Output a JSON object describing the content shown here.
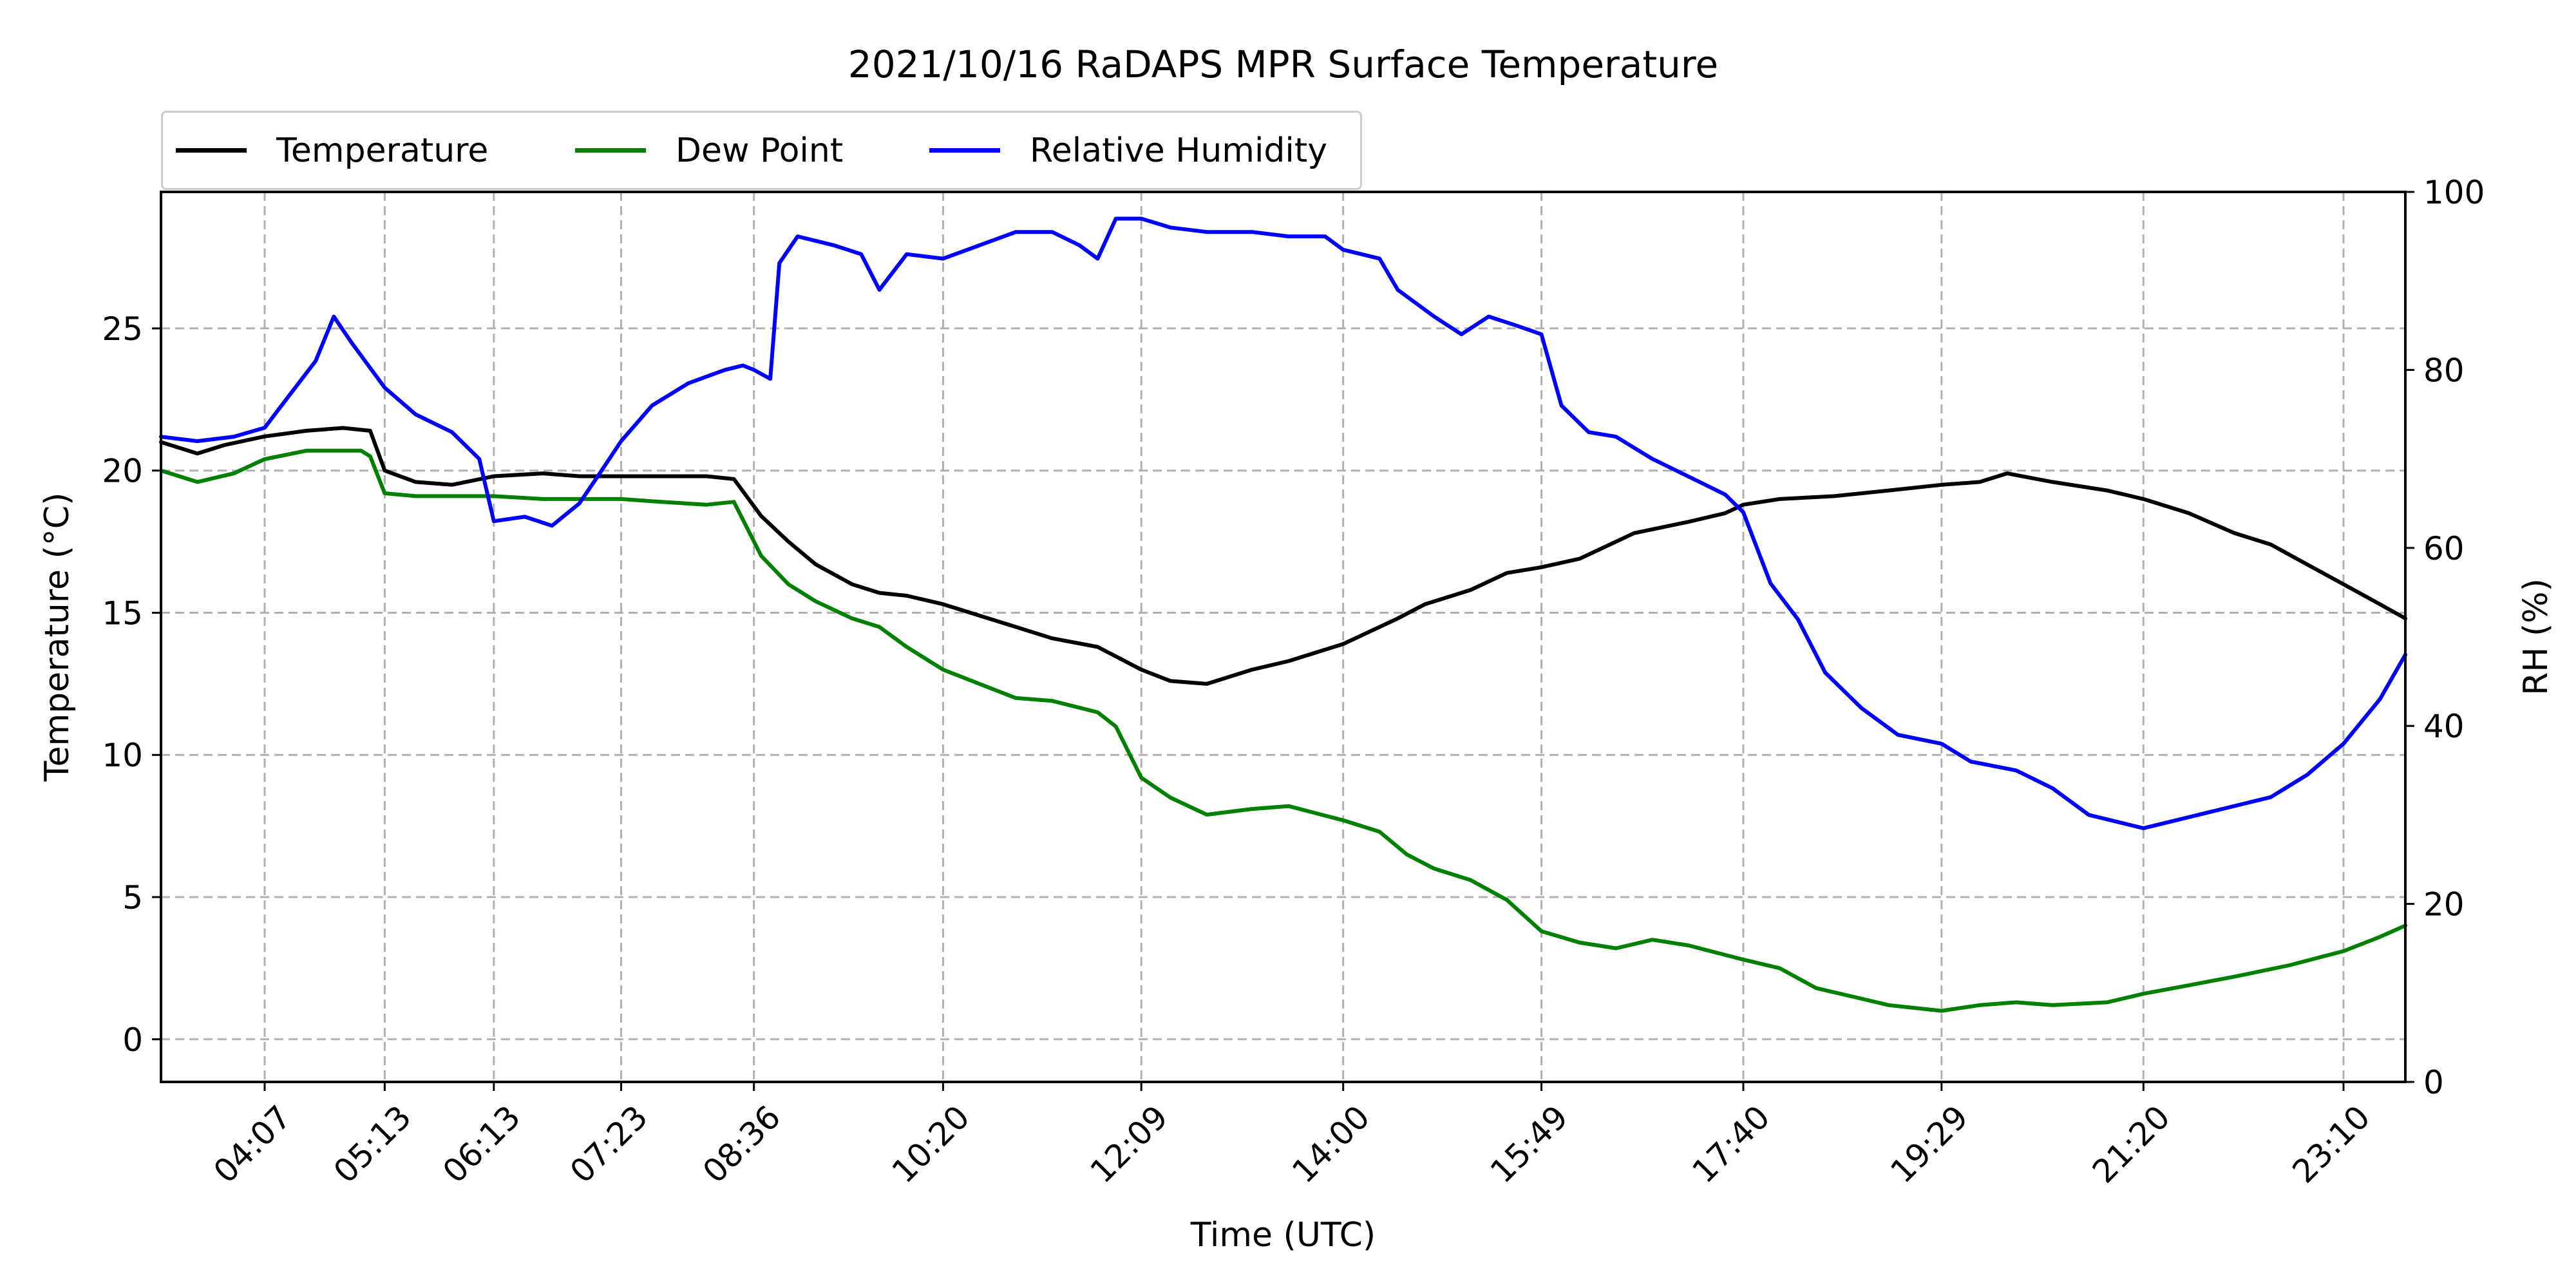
{
  "chart_data": {
    "type": "line",
    "title": "2021/10/16 RaDAPS MPR Surface Temperature",
    "xlabel": "Time (UTC)",
    "ylabel": "Temperature ($^\\circ$C)",
    "ylabel_display": "Temperature (°C)",
    "y2label": "RH (%)",
    "ylim": [
      -1.5,
      29.8
    ],
    "y2lim": [
      0,
      100
    ],
    "xlim": [
      "03:10",
      "23:44"
    ],
    "yticks": [
      0,
      5,
      10,
      15,
      20,
      25
    ],
    "y2ticks": [
      0,
      20,
      40,
      60,
      80,
      100
    ],
    "xticks": [
      "04:07",
      "05:13",
      "06:13",
      "07:23",
      "08:36",
      "10:20",
      "12:09",
      "14:00",
      "15:49",
      "17:40",
      "19:29",
      "21:20",
      "23:10"
    ],
    "grid": true,
    "legend_position": "top-left, above plot",
    "legend": [
      "Temperature",
      "Dew Point",
      "Relative Humidity"
    ],
    "series": [
      {
        "name": "Temperature",
        "axis": "left",
        "color": "#000000",
        "points": [
          [
            "03:10",
            21.0
          ],
          [
            "03:30",
            20.6
          ],
          [
            "03:45",
            20.9
          ],
          [
            "04:07",
            21.2
          ],
          [
            "04:30",
            21.4
          ],
          [
            "04:50",
            21.5
          ],
          [
            "05:05",
            21.4
          ],
          [
            "05:13",
            20.0
          ],
          [
            "05:30",
            19.6
          ],
          [
            "05:50",
            19.5
          ],
          [
            "06:13",
            19.8
          ],
          [
            "06:40",
            19.9
          ],
          [
            "07:00",
            19.8
          ],
          [
            "07:23",
            19.8
          ],
          [
            "07:45",
            19.8
          ],
          [
            "08:10",
            19.8
          ],
          [
            "08:25",
            19.7
          ],
          [
            "08:40",
            18.4
          ],
          [
            "08:55",
            17.5
          ],
          [
            "09:10",
            16.7
          ],
          [
            "09:30",
            16.0
          ],
          [
            "09:45",
            15.7
          ],
          [
            "10:00",
            15.6
          ],
          [
            "10:20",
            15.3
          ],
          [
            "10:40",
            14.9
          ],
          [
            "11:00",
            14.5
          ],
          [
            "11:20",
            14.1
          ],
          [
            "11:45",
            13.8
          ],
          [
            "12:09",
            13.0
          ],
          [
            "12:25",
            12.6
          ],
          [
            "12:45",
            12.5
          ],
          [
            "13:10",
            13.0
          ],
          [
            "13:30",
            13.3
          ],
          [
            "14:00",
            13.9
          ],
          [
            "14:30",
            14.8
          ],
          [
            "14:45",
            15.3
          ],
          [
            "15:10",
            15.8
          ],
          [
            "15:30",
            16.4
          ],
          [
            "15:49",
            16.6
          ],
          [
            "16:10",
            16.9
          ],
          [
            "16:40",
            17.8
          ],
          [
            "17:10",
            18.2
          ],
          [
            "17:30",
            18.5
          ],
          [
            "17:40",
            18.8
          ],
          [
            "18:00",
            19.0
          ],
          [
            "18:30",
            19.1
          ],
          [
            "19:00",
            19.3
          ],
          [
            "19:29",
            19.5
          ],
          [
            "19:50",
            19.6
          ],
          [
            "20:05",
            19.9
          ],
          [
            "20:30",
            19.6
          ],
          [
            "21:00",
            19.3
          ],
          [
            "21:20",
            19.0
          ],
          [
            "21:45",
            18.5
          ],
          [
            "22:10",
            17.8
          ],
          [
            "22:30",
            17.4
          ],
          [
            "23:10",
            16.0
          ],
          [
            "23:30",
            15.3
          ],
          [
            "23:44",
            14.8
          ]
        ]
      },
      {
        "name": "Dew Point",
        "axis": "left",
        "color": "#008000",
        "points": [
          [
            "03:10",
            20.0
          ],
          [
            "03:30",
            19.6
          ],
          [
            "03:50",
            19.9
          ],
          [
            "04:07",
            20.4
          ],
          [
            "04:30",
            20.7
          ],
          [
            "05:00",
            20.7
          ],
          [
            "05:05",
            20.5
          ],
          [
            "05:13",
            19.2
          ],
          [
            "05:30",
            19.1
          ],
          [
            "05:50",
            19.1
          ],
          [
            "06:13",
            19.1
          ],
          [
            "06:40",
            19.0
          ],
          [
            "07:00",
            19.0
          ],
          [
            "07:23",
            19.0
          ],
          [
            "07:45",
            18.9
          ],
          [
            "08:10",
            18.8
          ],
          [
            "08:25",
            18.9
          ],
          [
            "08:40",
            17.0
          ],
          [
            "08:55",
            16.0
          ],
          [
            "09:10",
            15.4
          ],
          [
            "09:30",
            14.8
          ],
          [
            "09:45",
            14.5
          ],
          [
            "10:00",
            13.8
          ],
          [
            "10:20",
            13.0
          ],
          [
            "10:40",
            12.5
          ],
          [
            "11:00",
            12.0
          ],
          [
            "11:20",
            11.9
          ],
          [
            "11:45",
            11.5
          ],
          [
            "11:55",
            11.0
          ],
          [
            "12:09",
            9.2
          ],
          [
            "12:25",
            8.5
          ],
          [
            "12:45",
            7.9
          ],
          [
            "13:10",
            8.1
          ],
          [
            "13:30",
            8.2
          ],
          [
            "14:00",
            7.7
          ],
          [
            "14:20",
            7.3
          ],
          [
            "14:35",
            6.5
          ],
          [
            "14:50",
            6.0
          ],
          [
            "15:10",
            5.6
          ],
          [
            "15:30",
            4.9
          ],
          [
            "15:49",
            3.8
          ],
          [
            "16:10",
            3.4
          ],
          [
            "16:30",
            3.2
          ],
          [
            "16:50",
            3.5
          ],
          [
            "17:10",
            3.3
          ],
          [
            "17:40",
            2.8
          ],
          [
            "18:00",
            2.5
          ],
          [
            "18:20",
            1.8
          ],
          [
            "18:40",
            1.5
          ],
          [
            "19:00",
            1.2
          ],
          [
            "19:29",
            1.0
          ],
          [
            "19:50",
            1.2
          ],
          [
            "20:10",
            1.3
          ],
          [
            "20:30",
            1.2
          ],
          [
            "21:00",
            1.3
          ],
          [
            "21:20",
            1.6
          ],
          [
            "21:45",
            1.9
          ],
          [
            "22:10",
            2.2
          ],
          [
            "22:40",
            2.6
          ],
          [
            "23:10",
            3.1
          ],
          [
            "23:30",
            3.6
          ],
          [
            "23:44",
            4.0
          ]
        ]
      },
      {
        "name": "Relative Humidity",
        "axis": "right",
        "color": "#0000ff",
        "points": [
          [
            "03:10",
            72.5
          ],
          [
            "03:30",
            72.0
          ],
          [
            "03:50",
            72.5
          ],
          [
            "04:07",
            73.5
          ],
          [
            "04:20",
            77.0
          ],
          [
            "04:35",
            81.0
          ],
          [
            "04:45",
            86.0
          ],
          [
            "04:55",
            83.0
          ],
          [
            "05:13",
            78.0
          ],
          [
            "05:30",
            75.0
          ],
          [
            "05:50",
            73.0
          ],
          [
            "06:05",
            70.0
          ],
          [
            "06:13",
            63.0
          ],
          [
            "06:30",
            63.5
          ],
          [
            "06:45",
            62.5
          ],
          [
            "07:00",
            65.0
          ],
          [
            "07:10",
            68.0
          ],
          [
            "07:23",
            72.0
          ],
          [
            "07:40",
            76.0
          ],
          [
            "08:00",
            78.5
          ],
          [
            "08:20",
            80.0
          ],
          [
            "08:30",
            80.5
          ],
          [
            "08:36",
            80.0
          ],
          [
            "08:45",
            79.0
          ],
          [
            "08:50",
            92.0
          ],
          [
            "09:00",
            95.0
          ],
          [
            "09:20",
            94.0
          ],
          [
            "09:35",
            93.0
          ],
          [
            "09:45",
            89.0
          ],
          [
            "10:00",
            93.0
          ],
          [
            "10:20",
            92.5
          ],
          [
            "10:40",
            94.0
          ],
          [
            "11:00",
            95.5
          ],
          [
            "11:20",
            95.5
          ],
          [
            "11:35",
            94.0
          ],
          [
            "11:45",
            92.5
          ],
          [
            "11:55",
            97.0
          ],
          [
            "12:09",
            97.0
          ],
          [
            "12:25",
            96.0
          ],
          [
            "12:45",
            95.5
          ],
          [
            "13:10",
            95.5
          ],
          [
            "13:30",
            95.0
          ],
          [
            "13:50",
            95.0
          ],
          [
            "14:00",
            93.5
          ],
          [
            "14:20",
            92.5
          ],
          [
            "14:30",
            89.0
          ],
          [
            "14:50",
            86.0
          ],
          [
            "15:05",
            84.0
          ],
          [
            "15:20",
            86.0
          ],
          [
            "15:35",
            85.0
          ],
          [
            "15:49",
            84.0
          ],
          [
            "16:00",
            76.0
          ],
          [
            "16:15",
            73.0
          ],
          [
            "16:30",
            72.5
          ],
          [
            "16:50",
            70.0
          ],
          [
            "17:10",
            68.0
          ],
          [
            "17:30",
            66.0
          ],
          [
            "17:40",
            64.0
          ],
          [
            "17:55",
            56.0
          ],
          [
            "18:10",
            52.0
          ],
          [
            "18:25",
            46.0
          ],
          [
            "18:45",
            42.0
          ],
          [
            "19:05",
            39.0
          ],
          [
            "19:29",
            38.0
          ],
          [
            "19:45",
            36.0
          ],
          [
            "20:10",
            35.0
          ],
          [
            "20:30",
            33.0
          ],
          [
            "20:50",
            30.0
          ],
          [
            "21:10",
            29.0
          ],
          [
            "21:20",
            28.5
          ],
          [
            "21:40",
            29.5
          ],
          [
            "22:00",
            30.5
          ],
          [
            "22:30",
            32.0
          ],
          [
            "22:50",
            34.5
          ],
          [
            "23:10",
            38.0
          ],
          [
            "23:30",
            43.0
          ],
          [
            "23:44",
            48.0
          ]
        ]
      }
    ]
  }
}
